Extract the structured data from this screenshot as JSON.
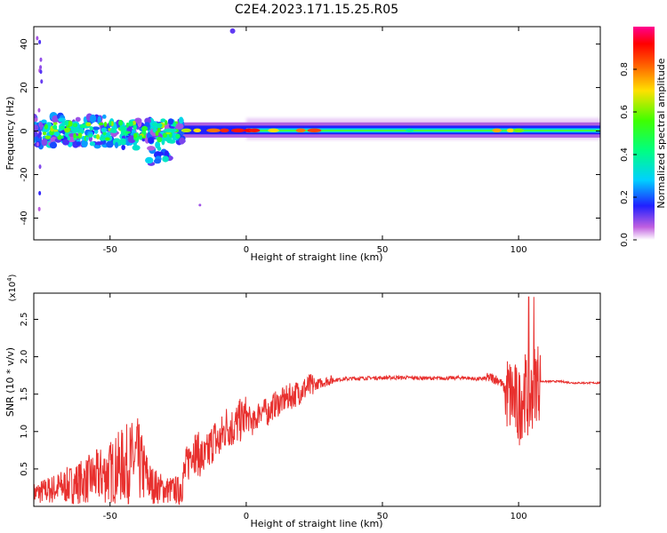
{
  "title": "C2E4.2023.171.15.25.R05",
  "chart_data": [
    {
      "type": "heatmap",
      "xlabel": "Height of straight line (km)",
      "ylabel": "Frequency (Hz)",
      "xlim": [
        -78,
        130
      ],
      "ylim": [
        -50,
        48
      ],
      "xticks": [
        -50,
        0,
        50,
        100
      ],
      "yticks": [
        -40,
        -20,
        0,
        20,
        40
      ],
      "grid": false,
      "colorbar": {
        "label": "Normalized spectral amplitude",
        "range": [
          0.0,
          1.0
        ],
        "ticks": [
          "0.0",
          "0.2",
          "0.4",
          "0.6",
          "0.8"
        ],
        "colormap": "rainbow"
      }
    },
    {
      "type": "line",
      "xlabel": "Height of straight line (km)",
      "ylabel": "SNR (10 * v/v)",
      "y_multiplier": "(x10^4)",
      "xlim": [
        -78,
        130
      ],
      "ylim": [
        0,
        2.85
      ],
      "xticks": [
        -50,
        0,
        50,
        100
      ],
      "yticks": [
        "0.5",
        "1.0",
        "1.5",
        "2.0",
        "2.5"
      ],
      "grid": false,
      "color": "#e8302e",
      "series": [
        {
          "x": [
            -78,
            -70,
            -60,
            -50,
            -45,
            -40,
            -35,
            -30,
            -25,
            -22,
            -20,
            -17,
            -15,
            -12,
            -10,
            -7,
            -5,
            -2,
            0,
            3,
            5,
            8,
            10,
            13,
            15,
            18,
            20,
            25,
            30,
            35,
            40,
            50,
            60,
            70,
            80,
            85,
            90,
            93,
            96,
            98,
            100,
            102,
            104,
            106,
            108,
            115,
            120,
            130
          ],
          "y": [
            0.15,
            0.22,
            0.32,
            0.45,
            0.55,
            0.62,
            0.28,
            0.2,
            0.2,
            0.5,
            0.78,
            0.68,
            0.62,
            0.9,
            0.85,
            1.1,
            1.05,
            1.15,
            1.2,
            1.1,
            1.3,
            1.25,
            1.35,
            1.4,
            1.45,
            1.5,
            1.55,
            1.62,
            1.68,
            1.7,
            1.71,
            1.72,
            1.72,
            1.71,
            1.72,
            1.7,
            1.72,
            1.68,
            1.5,
            1.45,
            1.3,
            1.55,
            1.4,
            1.7,
            1.67,
            1.67,
            1.65,
            1.65
          ]
        }
      ]
    }
  ]
}
